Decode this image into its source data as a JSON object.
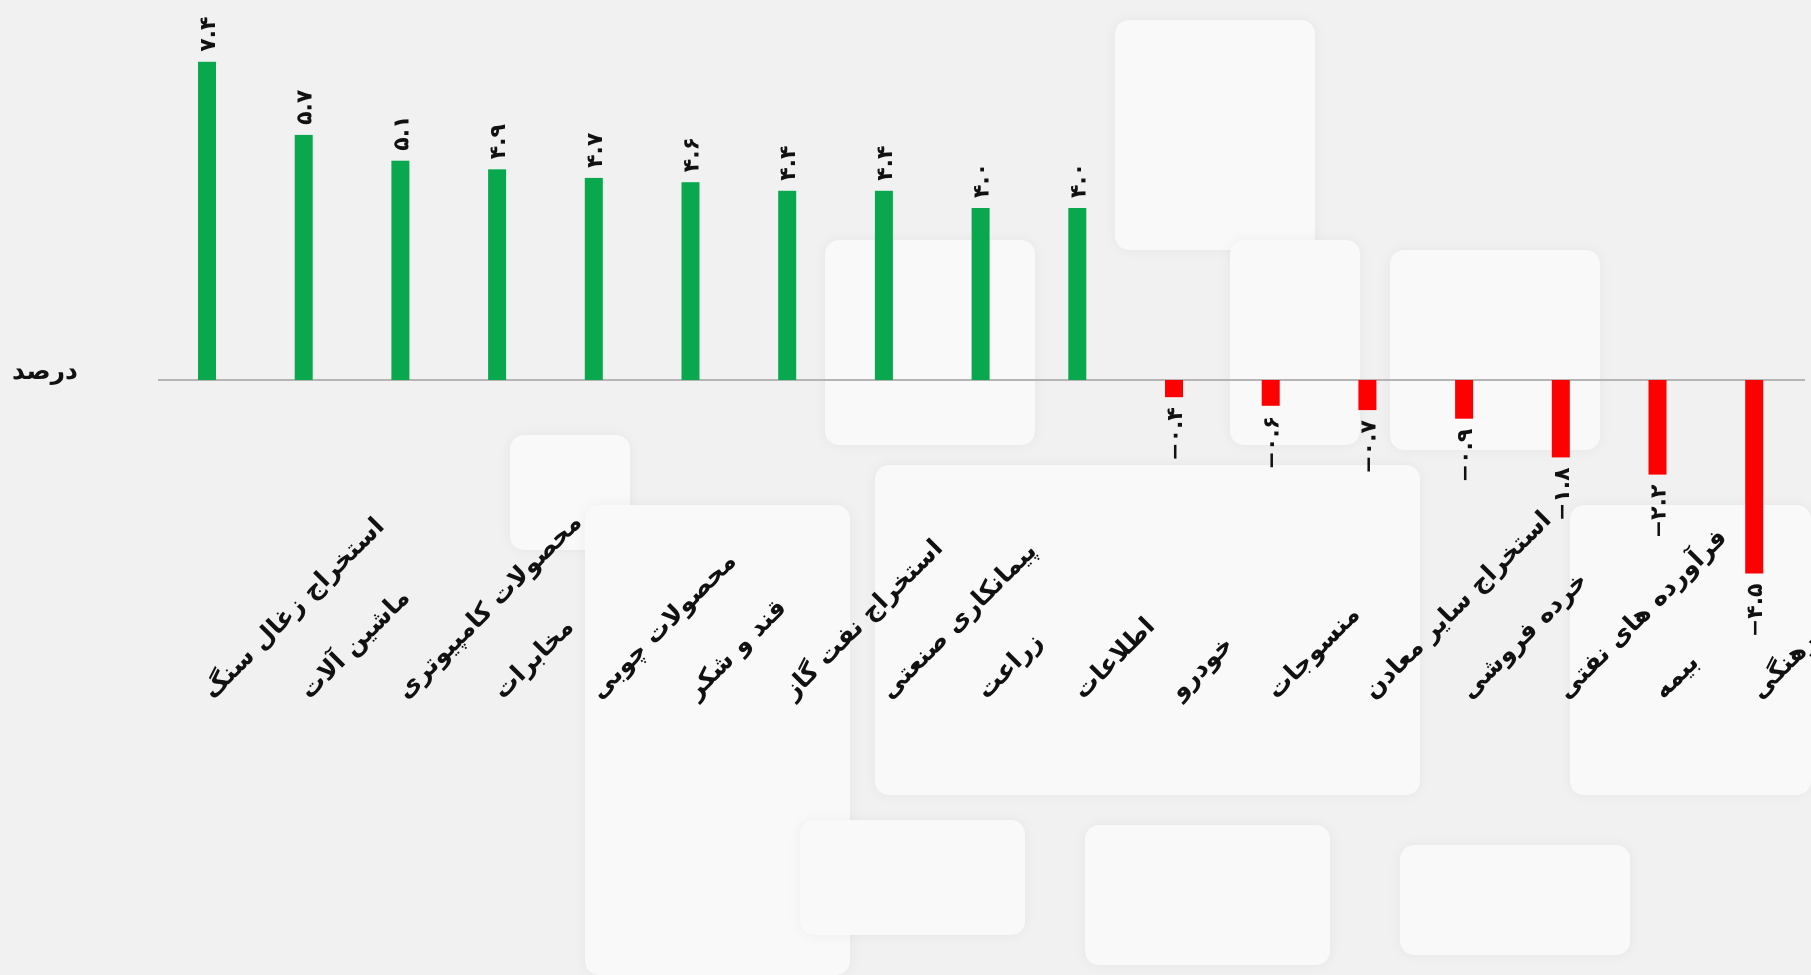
{
  "chart_data": {
    "type": "bar",
    "ylabel": "درصد",
    "colors": {
      "positive": "#0aa84e",
      "negative": "#ff0000",
      "axis": "#b5b5b5"
    },
    "categories": [
      "استخراج زغال سنگ",
      "ماشین آلات",
      "محصولات کامپیوتری",
      "مخابرات",
      "محصولات چوبی",
      "قند و شکر",
      "استخراج نفت گاز",
      "پیمانکاری صنعتی",
      "زراعت",
      "اطلاعات",
      "خودرو",
      "منسوجات",
      "استخراج سایر معادن",
      "خرده فروشی",
      "فرآورده های نفتی",
      "بیمه",
      "فعالیتهای فرهنگی"
    ],
    "values": [
      7.4,
      5.7,
      5.1,
      4.9,
      4.7,
      4.6,
      4.4,
      4.4,
      4.0,
      4.0,
      -0.4,
      -0.6,
      -0.7,
      -0.9,
      -1.8,
      -2.2,
      -4.5
    ],
    "value_labels": [
      "۷.۴",
      "۵.۷",
      "۵.۱",
      "۴.۹",
      "۴.۷",
      "۴.۶",
      "۴.۴",
      "۴.۴",
      "۴.۰",
      "۴.۰",
      "−۰.۴",
      "−۰.۶",
      "−۰.۷",
      "−۰.۹",
      "−۱.۸",
      "−۲.۲",
      "−۴.۵"
    ]
  }
}
